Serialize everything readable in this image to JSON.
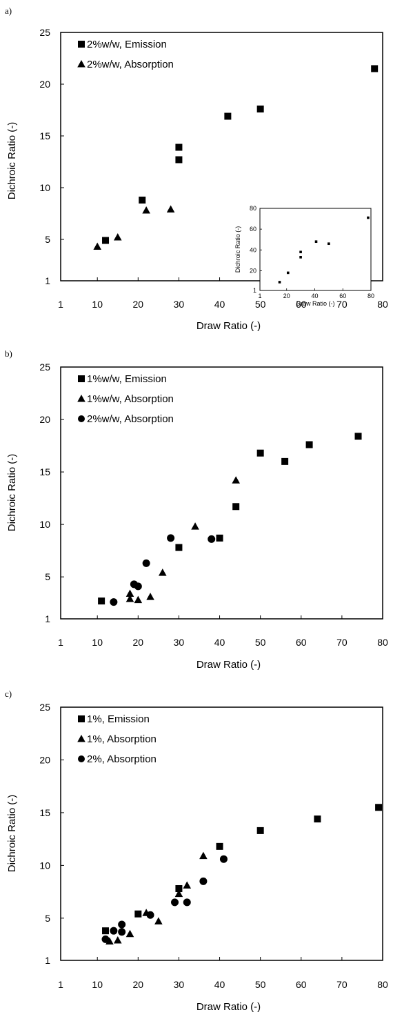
{
  "chart_data": [
    {
      "type": "scatter",
      "panel_label": "a)",
      "xlabel": "Draw Ratio (-)",
      "ylabel": "Dichroic Ratio (-)",
      "xlim": [
        1,
        80
      ],
      "ylim": [
        1,
        25
      ],
      "xticks": [
        "1",
        "10",
        "20",
        "30",
        "40",
        "50",
        "60",
        "70",
        "80"
      ],
      "yticks": [
        "1",
        "5",
        "10",
        "15",
        "20",
        "25"
      ],
      "legend_position": "top-left",
      "grid": false,
      "series": [
        {
          "name": "2%w/w, Emission",
          "marker": "square",
          "points": [
            [
              12,
              4.9
            ],
            [
              21,
              8.8
            ],
            [
              30,
              12.7
            ],
            [
              30,
              13.9
            ],
            [
              42,
              16.9
            ],
            [
              50,
              17.6
            ],
            [
              78,
              21.5
            ]
          ]
        },
        {
          "name": "2%w/w, Absorption",
          "marker": "triangle",
          "points": [
            [
              10,
              4.3
            ],
            [
              15,
              5.2
            ],
            [
              22,
              7.8
            ],
            [
              28,
              7.9
            ]
          ]
        }
      ],
      "inset": {
        "xlabel": "Draw Ratio (-)",
        "ylabel": "Dichroic Ratio (-)",
        "xlim": [
          1,
          80
        ],
        "ylim": [
          1,
          80
        ],
        "xticks": [
          "1",
          "20",
          "40",
          "60",
          "80"
        ],
        "yticks": [
          "1",
          "20",
          "40",
          "60",
          "80"
        ],
        "points": [
          [
            15,
            9
          ],
          [
            21,
            18
          ],
          [
            30,
            33
          ],
          [
            30,
            38
          ],
          [
            41,
            48
          ],
          [
            50,
            46
          ],
          [
            78,
            71
          ]
        ]
      }
    },
    {
      "type": "scatter",
      "panel_label": "b)",
      "xlabel": "Draw Ratio (-)",
      "ylabel": "Dichroic Ratio (-)",
      "xlim": [
        1,
        80
      ],
      "ylim": [
        1,
        25
      ],
      "xticks": [
        "1",
        "10",
        "20",
        "30",
        "40",
        "50",
        "60",
        "70",
        "80"
      ],
      "yticks": [
        "1",
        "5",
        "10",
        "15",
        "20",
        "25"
      ],
      "legend_position": "top-left",
      "grid": false,
      "series": [
        {
          "name": "1%w/w, Emission",
          "marker": "square",
          "points": [
            [
              11,
              2.7
            ],
            [
              30,
              7.8
            ],
            [
              40,
              8.7
            ],
            [
              44,
              11.7
            ],
            [
              50,
              16.8
            ],
            [
              56,
              16
            ],
            [
              62,
              17.6
            ],
            [
              74,
              18.4
            ]
          ]
        },
        {
          "name": "1%w/w, Absorption",
          "marker": "triangle",
          "points": [
            [
              18,
              2.9
            ],
            [
              18,
              3.4
            ],
            [
              20,
              2.8
            ],
            [
              23,
              3.1
            ],
            [
              26,
              5.4
            ],
            [
              34,
              9.8
            ],
            [
              44,
              14.2
            ]
          ]
        },
        {
          "name": "2%w/w, Absorption",
          "marker": "circle",
          "points": [
            [
              14,
              2.6
            ],
            [
              19,
              4.3
            ],
            [
              20,
              4.1
            ],
            [
              22,
              6.3
            ],
            [
              28,
              8.7
            ],
            [
              38,
              8.6
            ]
          ]
        }
      ]
    },
    {
      "type": "scatter",
      "panel_label": "c)",
      "xlabel": "Draw Ratio (-)",
      "ylabel": "Dichroic Ratio (-)",
      "xlim": [
        1,
        80
      ],
      "ylim": [
        1,
        25
      ],
      "xticks": [
        "1",
        "10",
        "20",
        "30",
        "40",
        "50",
        "60",
        "70",
        "80"
      ],
      "yticks": [
        "1",
        "5",
        "10",
        "15",
        "20",
        "25"
      ],
      "legend_position": "top-left",
      "grid": false,
      "series": [
        {
          "name": "1%, Emission",
          "marker": "square",
          "points": [
            [
              12,
              3.8
            ],
            [
              20,
              5.4
            ],
            [
              30,
              7.8
            ],
            [
              40,
              11.8
            ],
            [
              50,
              13.3
            ],
            [
              64,
              14.4
            ],
            [
              79,
              15.5
            ]
          ]
        },
        {
          "name": "1%, Absorption",
          "marker": "triangle",
          "points": [
            [
              13,
              2.8
            ],
            [
              15,
              2.9
            ],
            [
              18,
              3.5
            ],
            [
              22,
              5.5
            ],
            [
              25,
              4.7
            ],
            [
              30,
              7.3
            ],
            [
              32,
              8.1
            ],
            [
              36,
              10.9
            ]
          ]
        },
        {
          "name": "2%, Absorption",
          "marker": "circle",
          "points": [
            [
              12,
              3
            ],
            [
              14,
              3.8
            ],
            [
              16,
              3.7
            ],
            [
              16,
              4.4
            ],
            [
              23,
              5.3
            ],
            [
              29,
              6.5
            ],
            [
              32,
              6.5
            ],
            [
              36,
              8.5
            ],
            [
              41,
              10.6
            ]
          ]
        }
      ]
    }
  ]
}
